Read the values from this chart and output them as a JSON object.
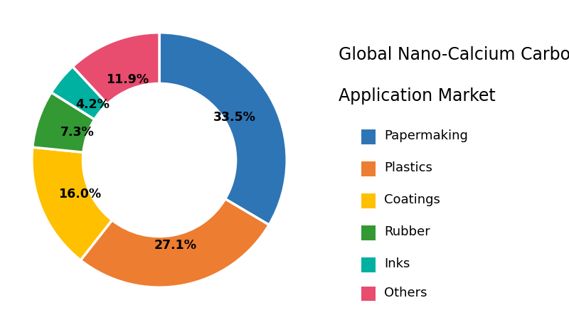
{
  "title_line1": "Global Nano-Calcium Carbonate",
  "title_line2": "Application Market",
  "categories": [
    "Papermaking",
    "Plastics",
    "Coatings",
    "Rubber",
    "Inks",
    "Others"
  ],
  "values": [
    33.5,
    27.1,
    16.0,
    7.3,
    4.2,
    11.9
  ],
  "colors": [
    "#2E75B6",
    "#ED7D31",
    "#FFC000",
    "#339933",
    "#00B0A0",
    "#E84C6E"
  ],
  "pct_labels": [
    "33.5%",
    "27.1%",
    "16.0%",
    "7.3%",
    "4.2%",
    "11.9%"
  ],
  "donut_width": 0.4,
  "label_fontsize": 12.5,
  "legend_fontsize": 13,
  "title_fontsize1": 17,
  "title_fontsize2": 17,
  "background_color": "#FFFFFF"
}
